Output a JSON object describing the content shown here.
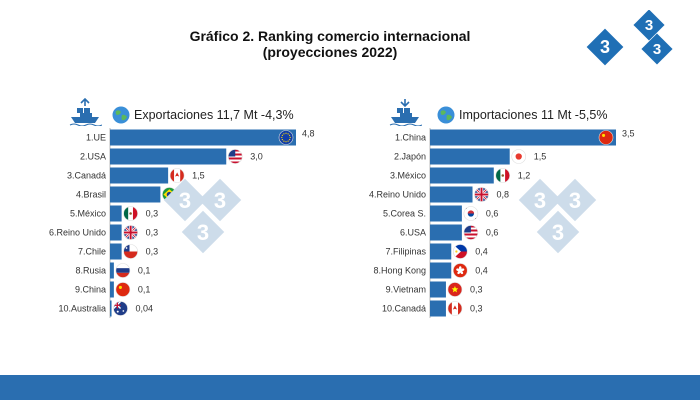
{
  "title_line1": "Gráfico 2. Ranking comercio internacional",
  "title_line2": "(proyecciones 2022)",
  "colors": {
    "bar": "#2a6eb0",
    "footer": "#2a6eb0",
    "logo": "#1f6fb5",
    "watermark": "#cddcea"
  },
  "exports_header": "Exportaciones 11,7 Mt -4,3%",
  "imports_header": "Importaciones 11 Mt -5,5%",
  "chart_data": [
    {
      "type": "bar",
      "orientation": "horizontal",
      "title": "Exportaciones 11,7 Mt -4,3%",
      "categories": [
        "1.UE",
        "2.USA",
        "3.Canadá",
        "4.Brasil",
        "5.México",
        "6.Reino Unido",
        "7.Chile",
        "8.Rusia",
        "9.China",
        "10.Australia"
      ],
      "values": [
        4.8,
        3.0,
        1.5,
        1.3,
        0.3,
        0.3,
        0.3,
        0.1,
        0.1,
        0.04
      ],
      "value_labels": [
        "4,8",
        "3,0",
        "1,5",
        "1,3",
        "0,3",
        "0,3",
        "0,3",
        "0,1",
        "0,1",
        "0,04"
      ],
      "flags": [
        "eu",
        "us",
        "ca",
        "br",
        "mx",
        "gb",
        "cl",
        "ru",
        "cn",
        "au"
      ],
      "xlim": [
        0,
        4.8
      ]
    },
    {
      "type": "bar",
      "orientation": "horizontal",
      "title": "Importaciones 11 Mt -5,5%",
      "categories": [
        "1.China",
        "2.Japón",
        "3.México",
        "4.Reino Unido",
        "5.Corea S.",
        "6.USA",
        "7.Filipinas",
        "8.Hong Kong",
        "9.Vietnam",
        "10.Canadá"
      ],
      "values": [
        3.5,
        1.5,
        1.2,
        0.8,
        0.6,
        0.6,
        0.4,
        0.4,
        0.3,
        0.3
      ],
      "value_labels": [
        "3,5",
        "1,5",
        "1,2",
        "0,8",
        "0,6",
        "0,6",
        "0,4",
        "0,4",
        "0,3",
        "0,3"
      ],
      "flags": [
        "cn",
        "jp",
        "mx",
        "gb",
        "kr",
        "us",
        "ph",
        "hk",
        "vn",
        "ca"
      ],
      "xlim": [
        0,
        3.5
      ]
    }
  ]
}
